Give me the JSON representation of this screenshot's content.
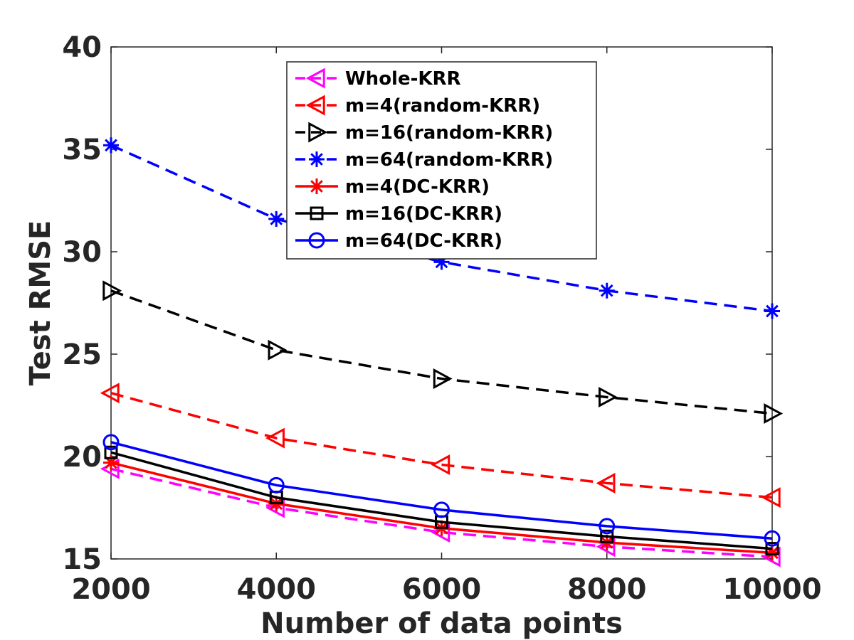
{
  "chart_data": {
    "type": "line",
    "title": "",
    "xlabel": "Number of data points",
    "ylabel": "Test RMSE",
    "x": [
      2000,
      4000,
      6000,
      8000,
      10000
    ],
    "xlim": [
      2000,
      10000
    ],
    "ylim": [
      15,
      40
    ],
    "xticks": [
      2000,
      4000,
      6000,
      8000,
      10000
    ],
    "yticks": [
      15,
      20,
      25,
      30,
      35,
      40
    ],
    "legend_position": "top-center",
    "grid": false,
    "series": [
      {
        "name": "Whole-KRR",
        "values": [
          19.4,
          17.5,
          16.3,
          15.6,
          15.1
        ],
        "color": "#ff00ff",
        "dash": "dashed",
        "marker": "triangle-left"
      },
      {
        "name": "m=4(random-KRR)",
        "values": [
          23.1,
          20.9,
          19.6,
          18.7,
          18.0
        ],
        "color": "#ff0000",
        "dash": "dashed",
        "marker": "triangle-left"
      },
      {
        "name": "m=16(random-KRR)",
        "values": [
          28.1,
          25.2,
          23.8,
          22.9,
          22.1
        ],
        "color": "#000000",
        "dash": "dashed",
        "marker": "triangle-right"
      },
      {
        "name": "m=64(random-KRR)",
        "values": [
          35.2,
          31.6,
          29.5,
          28.1,
          27.1
        ],
        "color": "#0000ff",
        "dash": "dashed",
        "marker": "asterisk"
      },
      {
        "name": "m=4(DC-KRR)",
        "values": [
          19.7,
          17.7,
          16.5,
          15.8,
          15.3
        ],
        "color": "#ff0000",
        "dash": "solid",
        "marker": "asterisk"
      },
      {
        "name": "m=16(DC-KRR)",
        "values": [
          20.2,
          18.0,
          16.8,
          16.1,
          15.5
        ],
        "color": "#000000",
        "dash": "solid",
        "marker": "square"
      },
      {
        "name": "m=64(DC-KRR)",
        "values": [
          20.7,
          18.6,
          17.4,
          16.6,
          16.0
        ],
        "color": "#0000ff",
        "dash": "solid",
        "marker": "circle"
      }
    ]
  }
}
